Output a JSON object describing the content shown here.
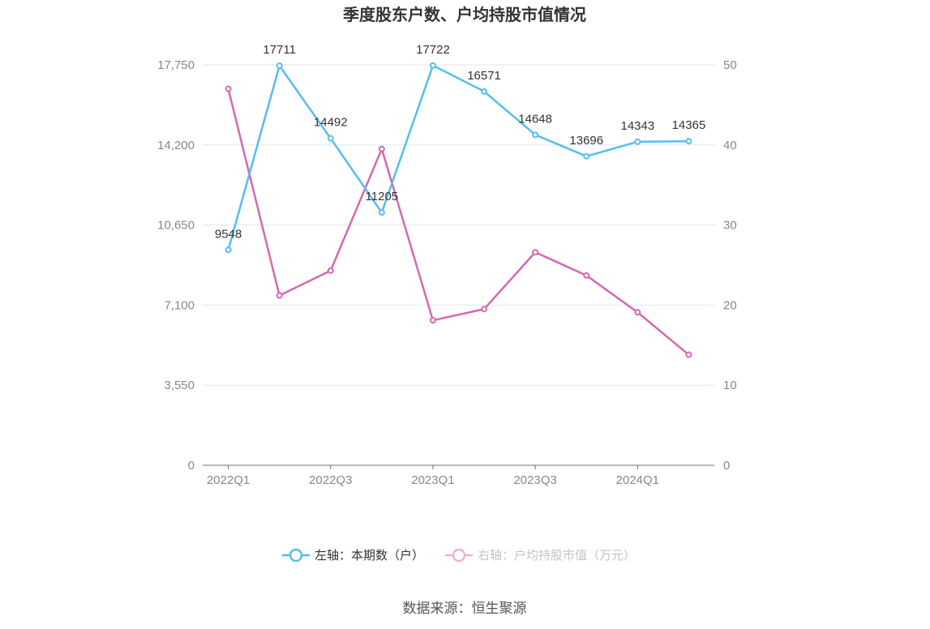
{
  "chart_data": {
    "type": "line",
    "title": "季度股东户数、户均持股市值情况",
    "categories": [
      "2022Q1",
      "2022Q2",
      "2022Q3",
      "2022Q4",
      "2023Q1",
      "2023Q2",
      "2023Q3",
      "2023Q4",
      "2024Q1",
      "2024Q2"
    ],
    "x_tick_labels": [
      "2022Q1",
      "",
      "2022Q3",
      "",
      "2023Q1",
      "",
      "2023Q3",
      "",
      "2024Q1",
      ""
    ],
    "left_axis": {
      "ticks": [
        "0",
        "3,550",
        "7,100",
        "10,650",
        "14,200",
        "17,750"
      ],
      "ylim": [
        0,
        17750
      ]
    },
    "right_axis": {
      "ticks": [
        "0",
        "10",
        "20",
        "30",
        "40",
        "50"
      ],
      "ylim": [
        0,
        50
      ]
    },
    "series": [
      {
        "name": "左轴：本期数（户）",
        "axis": "left",
        "color": "#56bdf0",
        "values": [
          9548,
          17711,
          14492,
          11205,
          17722,
          16571,
          14648,
          13696,
          14343,
          14365
        ],
        "labels": [
          "9548",
          "17711",
          "14492",
          "11205",
          "17722",
          "16571",
          "14648",
          "13696",
          "14343",
          "14365"
        ]
      },
      {
        "name": "右轴：户均持股市值（万元）",
        "axis": "right",
        "color": "#d469b0",
        "values": [
          47.0,
          21.2,
          24.3,
          39.5,
          18.1,
          19.5,
          26.6,
          23.7,
          19.1,
          13.8
        ]
      }
    ],
    "grid": true,
    "legend_position": "bottom"
  },
  "source": "数据来源：恒生聚源",
  "colors": {
    "axis": "#6e7079",
    "grid": "#e0e6f1",
    "legend_inactive": "#888888"
  }
}
